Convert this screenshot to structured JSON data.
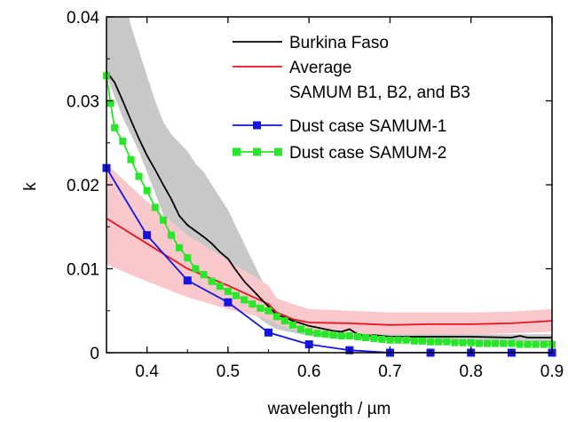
{
  "chart_data": {
    "type": "line",
    "xlabel": "wavelength / µm",
    "ylabel": "k",
    "xlim": [
      0.35,
      0.9
    ],
    "ylim": [
      0,
      0.04
    ],
    "x_ticks": [
      "0.4",
      "0.5",
      "0.6",
      "0.7",
      "0.8",
      "0.9"
    ],
    "y_ticks": [
      "0",
      "0.01",
      "0.02",
      "0.03",
      "0.04"
    ],
    "legend_position": "top-right",
    "legend": {
      "burkina": "Burkina Faso",
      "average_line1": "Average",
      "average_line2": "SAMUM B1, B2, and B3",
      "samum1": "Dust case SAMUM-1",
      "samum2": "Dust case SAMUM-2"
    },
    "colors": {
      "burkina": "#000000",
      "burkina_band": "#c8c8c8",
      "average": "#e8141e",
      "average_band": "#f8c8cc",
      "samum1": "#1414e6",
      "samum2": "#28e628"
    },
    "series": [
      {
        "key": "burkina",
        "name": "Burkina Faso",
        "x": [
          0.35,
          0.36,
          0.37,
          0.38,
          0.39,
          0.4,
          0.41,
          0.42,
          0.43,
          0.44,
          0.45,
          0.46,
          0.47,
          0.48,
          0.49,
          0.5,
          0.51,
          0.52,
          0.53,
          0.54,
          0.55,
          0.56,
          0.57,
          0.58,
          0.59,
          0.6,
          0.61,
          0.62,
          0.63,
          0.64,
          0.65,
          0.66,
          0.67,
          0.68,
          0.7,
          0.75,
          0.8,
          0.85,
          0.86,
          0.87,
          0.9
        ],
        "y": [
          0.0335,
          0.0322,
          0.03,
          0.0277,
          0.0255,
          0.0235,
          0.0218,
          0.02,
          0.0183,
          0.0163,
          0.0152,
          0.0145,
          0.0138,
          0.013,
          0.012,
          0.0112,
          0.0098,
          0.0085,
          0.0075,
          0.0065,
          0.0055,
          0.0045,
          0.0042,
          0.0038,
          0.0035,
          0.0032,
          0.003,
          0.0028,
          0.0026,
          0.0025,
          0.0028,
          0.0022,
          0.002,
          0.0021,
          0.0019,
          0.0019,
          0.0019,
          0.0018,
          0.002,
          0.0018,
          0.0018
        ]
      },
      {
        "key": "average",
        "name": "Average SAMUM B1, B2, and B3",
        "x": [
          0.35,
          0.4,
          0.45,
          0.5,
          0.55,
          0.56,
          0.58,
          0.6,
          0.65,
          0.7,
          0.75,
          0.8,
          0.85,
          0.9
        ],
        "y": [
          0.016,
          0.013,
          0.01,
          0.008,
          0.0058,
          0.0048,
          0.004,
          0.0036,
          0.0035,
          0.0033,
          0.0034,
          0.0034,
          0.0035,
          0.0038
        ]
      },
      {
        "key": "samum1",
        "name": "Dust case SAMUM-1",
        "x": [
          0.35,
          0.4,
          0.45,
          0.5,
          0.55,
          0.6,
          0.65,
          0.7,
          0.75,
          0.8,
          0.85,
          0.9
        ],
        "y": [
          0.022,
          0.014,
          0.0086,
          0.006,
          0.0024,
          0.001,
          0.0003,
          0.0,
          0.0,
          0.0,
          0.0,
          0.0
        ]
      },
      {
        "key": "samum2",
        "name": "Dust case SAMUM-2",
        "x": [
          0.35,
          0.355,
          0.36,
          0.37,
          0.38,
          0.39,
          0.4,
          0.41,
          0.42,
          0.43,
          0.44,
          0.45,
          0.46,
          0.47,
          0.48,
          0.49,
          0.5,
          0.51,
          0.52,
          0.53,
          0.54,
          0.55,
          0.56,
          0.57,
          0.58,
          0.59,
          0.6,
          0.61,
          0.62,
          0.63,
          0.64,
          0.65,
          0.66,
          0.67,
          0.68,
          0.69,
          0.7,
          0.71,
          0.72,
          0.73,
          0.74,
          0.75,
          0.76,
          0.77,
          0.78,
          0.79,
          0.8,
          0.81,
          0.82,
          0.83,
          0.84,
          0.85,
          0.86,
          0.87,
          0.88,
          0.89,
          0.9
        ],
        "y": [
          0.033,
          0.0297,
          0.0268,
          0.0252,
          0.023,
          0.021,
          0.0193,
          0.0173,
          0.0158,
          0.014,
          0.0125,
          0.0113,
          0.01,
          0.0093,
          0.0085,
          0.0079,
          0.0073,
          0.0068,
          0.0063,
          0.0058,
          0.0053,
          0.005,
          0.0043,
          0.0038,
          0.0033,
          0.0028,
          0.0025,
          0.0023,
          0.0022,
          0.0021,
          0.002,
          0.002,
          0.0019,
          0.0018,
          0.0017,
          0.0016,
          0.0015,
          0.0015,
          0.0015,
          0.0014,
          0.0014,
          0.0013,
          0.0013,
          0.0013,
          0.0012,
          0.0012,
          0.0012,
          0.0011,
          0.0011,
          0.0011,
          0.0011,
          0.0011,
          0.001,
          0.001,
          0.001,
          0.001,
          0.001
        ]
      }
    ],
    "bands": [
      {
        "key": "burkina_band",
        "x": [
          0.35,
          0.36,
          0.37,
          0.38,
          0.39,
          0.4,
          0.41,
          0.42,
          0.43,
          0.44,
          0.45,
          0.46,
          0.47,
          0.48,
          0.49,
          0.5,
          0.51,
          0.52,
          0.53,
          0.54,
          0.55,
          0.56,
          0.57,
          0.58,
          0.6,
          0.65,
          0.7,
          0.75,
          0.8,
          0.85,
          0.9
        ],
        "upper": [
          0.045,
          0.045,
          0.043,
          0.039,
          0.036,
          0.033,
          0.03,
          0.0275,
          0.026,
          0.025,
          0.024,
          0.0225,
          0.0215,
          0.02,
          0.0185,
          0.017,
          0.015,
          0.013,
          0.011,
          0.009,
          0.007,
          0.005,
          0.0045,
          0.0042,
          0.0038,
          0.003,
          0.0024,
          0.0023,
          0.0022,
          0.0022,
          0.0022
        ],
        "lower": [
          0.033,
          0.0305,
          0.028,
          0.026,
          0.024,
          0.0215,
          0.019,
          0.0165,
          0.0145,
          0.0125,
          0.011,
          0.01,
          0.0092,
          0.0085,
          0.0078,
          0.007,
          0.0062,
          0.0055,
          0.0048,
          0.004,
          0.0033,
          0.0028,
          0.0026,
          0.0024,
          0.002,
          0.0016,
          0.0014,
          0.0014,
          0.0013,
          0.0013,
          0.0013
        ]
      },
      {
        "key": "average_band",
        "x": [
          0.35,
          0.4,
          0.45,
          0.5,
          0.55,
          0.56,
          0.58,
          0.6,
          0.65,
          0.7,
          0.75,
          0.8,
          0.85,
          0.9
        ],
        "upper": [
          0.0225,
          0.018,
          0.014,
          0.011,
          0.008,
          0.0065,
          0.0058,
          0.0052,
          0.005,
          0.0048,
          0.0048,
          0.0048,
          0.0049,
          0.0052
        ],
        "lower": [
          0.0105,
          0.0085,
          0.0066,
          0.0052,
          0.004,
          0.0034,
          0.0028,
          0.0025,
          0.0023,
          0.0022,
          0.0022,
          0.0022,
          0.0023,
          0.0025
        ]
      }
    ]
  }
}
